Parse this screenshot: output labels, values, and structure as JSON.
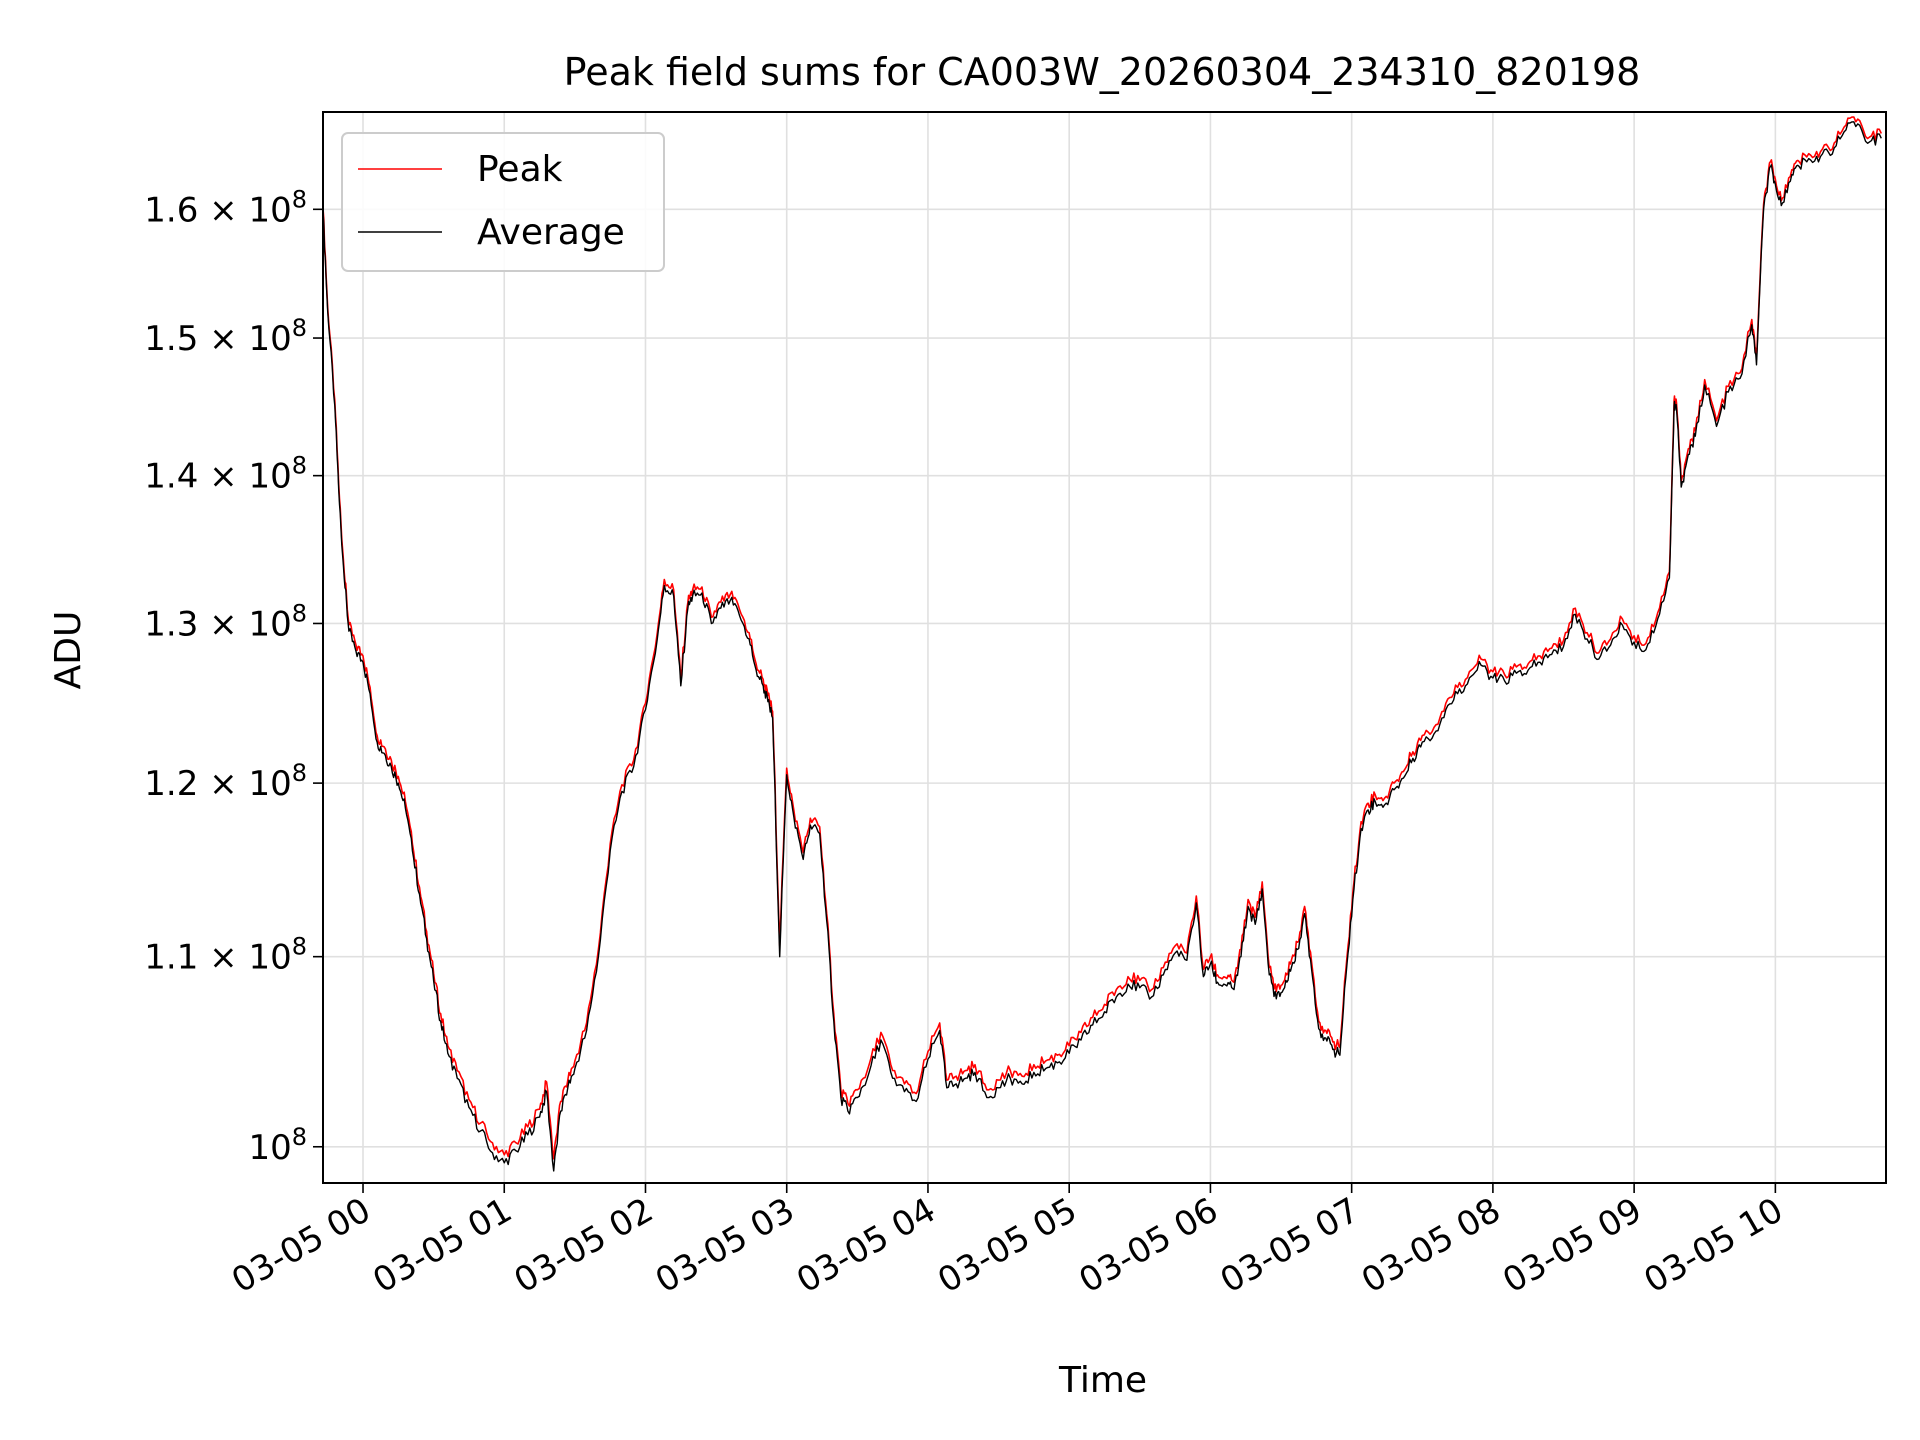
{
  "chart_data": {
    "type": "line",
    "title": "Peak field sums for CA003W_20260304_234310_820198",
    "xlabel": "Time",
    "ylabel": "ADU",
    "yscale": "log",
    "ylim": [
      98200000,
      168000000
    ],
    "xlim": [
      "2026-03-04T23:43",
      "2026-03-05T10:47"
    ],
    "grid": true,
    "legend_position": "top-left",
    "x_tick_labels": [
      "03-05 00",
      "03-05 01",
      "03-05 02",
      "03-05 03",
      "03-05 04",
      "03-05 05",
      "03-05 06",
      "03-05 07",
      "03-05 08",
      "03-05 09",
      "03-05 10"
    ],
    "y_ticks": [
      {
        "value": 100000000,
        "mant": "",
        "exp": "8"
      },
      {
        "value": 110000000,
        "mant": "1.1 × 10",
        "exp": "8"
      },
      {
        "value": 120000000,
        "mant": "1.2 × 10",
        "exp": "8"
      },
      {
        "value": 130000000,
        "mant": "1.3 × 10",
        "exp": "8"
      },
      {
        "value": 140000000,
        "mant": "1.4 × 10",
        "exp": "8"
      },
      {
        "value": 150000000,
        "mant": "1.5 × 10",
        "exp": "8"
      },
      {
        "value": 160000000,
        "mant": "1.6 × 10",
        "exp": "8"
      }
    ],
    "series": [
      {
        "name": "Peak",
        "color": "#ff0000"
      },
      {
        "name": "Average",
        "color": "#000000"
      }
    ],
    "x": [
      "2026-03-04T23:43",
      "2026-03-04T23:45",
      "2026-03-04T23:48",
      "2026-03-04T23:50",
      "2026-03-04T23:52",
      "2026-03-04T23:54",
      "2026-03-04T23:57",
      "2026-03-05T00:00",
      "2026-03-05T00:03",
      "2026-03-05T00:06",
      "2026-03-05T00:09",
      "2026-03-05T00:12",
      "2026-03-05T00:15",
      "2026-03-05T00:18",
      "2026-03-05T00:21",
      "2026-03-05T00:24",
      "2026-03-05T00:27",
      "2026-03-05T00:30",
      "2026-03-05T00:33",
      "2026-03-05T00:36",
      "2026-03-05T00:40",
      "2026-03-05T00:45",
      "2026-03-05T00:50",
      "2026-03-05T00:55",
      "2026-03-05T01:00",
      "2026-03-05T01:05",
      "2026-03-05T01:10",
      "2026-03-05T01:15",
      "2026-03-05T01:18",
      "2026-03-05T01:21",
      "2026-03-05T01:24",
      "2026-03-05T01:27",
      "2026-03-05T01:30",
      "2026-03-05T01:35",
      "2026-03-05T01:40",
      "2026-03-05T01:45",
      "2026-03-05T01:50",
      "2026-03-05T01:55",
      "2026-03-05T02:00",
      "2026-03-05T02:05",
      "2026-03-05T02:08",
      "2026-03-05T02:12",
      "2026-03-05T02:15",
      "2026-03-05T02:18",
      "2026-03-05T02:20",
      "2026-03-05T02:24",
      "2026-03-05T02:28",
      "2026-03-05T02:32",
      "2026-03-05T02:36",
      "2026-03-05T02:40",
      "2026-03-05T02:44",
      "2026-03-05T02:47",
      "2026-03-05T02:50",
      "2026-03-05T02:52",
      "2026-03-05T02:54",
      "2026-03-05T02:57",
      "2026-03-05T03:00",
      "2026-03-05T03:03",
      "2026-03-05T03:07",
      "2026-03-05T03:10",
      "2026-03-05T03:14",
      "2026-03-05T03:17",
      "2026-03-05T03:20",
      "2026-03-05T03:23",
      "2026-03-05T03:26",
      "2026-03-05T03:30",
      "2026-03-05T03:35",
      "2026-03-05T03:40",
      "2026-03-05T03:45",
      "2026-03-05T03:50",
      "2026-03-05T03:55",
      "2026-03-05T04:00",
      "2026-03-05T04:05",
      "2026-03-05T04:08",
      "2026-03-05T04:12",
      "2026-03-05T04:16",
      "2026-03-05T04:20",
      "2026-03-05T04:25",
      "2026-03-05T04:30",
      "2026-03-05T04:35",
      "2026-03-05T04:40",
      "2026-03-05T04:45",
      "2026-03-05T04:50",
      "2026-03-05T04:55",
      "2026-03-05T05:00",
      "2026-03-05T05:05",
      "2026-03-05T05:10",
      "2026-03-05T05:15",
      "2026-03-05T05:20",
      "2026-03-05T05:25",
      "2026-03-05T05:30",
      "2026-03-05T05:35",
      "2026-03-05T05:40",
      "2026-03-05T05:45",
      "2026-03-05T05:50",
      "2026-03-05T05:54",
      "2026-03-05T05:57",
      "2026-03-05T06:00",
      "2026-03-05T06:03",
      "2026-03-05T06:07",
      "2026-03-05T06:10",
      "2026-03-05T06:13",
      "2026-03-05T06:16",
      "2026-03-05T06:19",
      "2026-03-05T06:22",
      "2026-03-05T06:25",
      "2026-03-05T06:28",
      "2026-03-05T06:31",
      "2026-03-05T06:34",
      "2026-03-05T06:37",
      "2026-03-05T06:40",
      "2026-03-05T06:43",
      "2026-03-05T06:46",
      "2026-03-05T06:49",
      "2026-03-05T06:52",
      "2026-03-05T06:55",
      "2026-03-05T06:58",
      "2026-03-05T07:01",
      "2026-03-05T07:04",
      "2026-03-05T07:07",
      "2026-03-05T07:10",
      "2026-03-05T07:14",
      "2026-03-05T07:18",
      "2026-03-05T07:22",
      "2026-03-05T07:26",
      "2026-03-05T07:30",
      "2026-03-05T07:35",
      "2026-03-05T07:40",
      "2026-03-05T07:45",
      "2026-03-05T07:50",
      "2026-03-05T07:55",
      "2026-03-05T08:00",
      "2026-03-05T08:05",
      "2026-03-05T08:10",
      "2026-03-05T08:15",
      "2026-03-05T08:20",
      "2026-03-05T08:25",
      "2026-03-05T08:30",
      "2026-03-05T08:35",
      "2026-03-05T08:40",
      "2026-03-05T08:45",
      "2026-03-05T08:50",
      "2026-03-05T08:55",
      "2026-03-05T09:00",
      "2026-03-05T09:05",
      "2026-03-05T09:10",
      "2026-03-05T09:15",
      "2026-03-05T09:17",
      "2026-03-05T09:18",
      "2026-03-05T09:20",
      "2026-03-05T09:23",
      "2026-03-05T09:26",
      "2026-03-05T09:30",
      "2026-03-05T09:35",
      "2026-03-05T09:40",
      "2026-03-05T09:45",
      "2026-03-05T09:50",
      "2026-03-05T09:52",
      "2026-03-05T09:55",
      "2026-03-05T09:58",
      "2026-03-05T10:00",
      "2026-03-05T10:03",
      "2026-03-05T10:07",
      "2026-03-05T10:10",
      "2026-03-05T10:15",
      "2026-03-05T10:20",
      "2026-03-05T10:25",
      "2026-03-05T10:30",
      "2026-03-05T10:35",
      "2026-03-05T10:40",
      "2026-03-05T10:45",
      "2026-03-05T10:47"
    ],
    "average": [
      159800000,
      152000000,
      145000000,
      138000000,
      133000000,
      129500000,
      128200000,
      127500000,
      125500000,
      122500000,
      121800000,
      121000000,
      120000000,
      118500000,
      116000000,
      113500000,
      111000000,
      108700000,
      106500000,
      104800000,
      103500000,
      102000000,
      100800000,
      99700000,
      99200000,
      99800000,
      100600000,
      101500000,
      102800000,
      98800000,
      101800000,
      103000000,
      104000000,
      106000000,
      110000000,
      116000000,
      119500000,
      121000000,
      124500000,
      129000000,
      132500000,
      131800000,
      126000000,
      131000000,
      131800000,
      132000000,
      130000000,
      131000000,
      131500000,
      130500000,
      129000000,
      127000000,
      126000000,
      125000000,
      124000000,
      110000000,
      120500000,
      118000000,
      115500000,
      117500000,
      117000000,
      112000000,
      106500000,
      102500000,
      101800000,
      102500000,
      103800000,
      105500000,
      103500000,
      102800000,
      102300000,
      104500000,
      106000000,
      103000000,
      103200000,
      103500000,
      103800000,
      102500000,
      103000000,
      103500000,
      103200000,
      103800000,
      104000000,
      104300000,
      104800000,
      105500000,
      106300000,
      107000000,
      107800000,
      108500000,
      108300000,
      107800000,
      109000000,
      110200000,
      109800000,
      113000000,
      108900000,
      109600000,
      108600000,
      108400000,
      108200000,
      110000000,
      112800000,
      111800000,
      113800000,
      109000000,
      107700000,
      108200000,
      109200000,
      110400000,
      112400000,
      109300000,
      106100000,
      105600000,
      105000000,
      104700000,
      109600000,
      113800000,
      117300000,
      118400000,
      118900000,
      118700000,
      119600000,
      120300000,
      121500000,
      122500000,
      123000000,
      124500000,
      125500000,
      126500000,
      127300000,
      126500000,
      126300000,
      126800000,
      127000000,
      127500000,
      128000000,
      128500000,
      130600000,
      129000000,
      127700000,
      128600000,
      129900000,
      128800000,
      128300000,
      130300000,
      133000000,
      145000000,
      144800000,
      139200000,
      141500000,
      142800000,
      146500000,
      143500000,
      146000000,
      147000000,
      151000000,
      148000000,
      160000000,
      163500000,
      162000000,
      160500000,
      162800000,
      163500000,
      164000000,
      164500000,
      165000000,
      166500000,
      167000000,
      165500000,
      165800000
    ],
    "peak": [
      160100000,
      152300000,
      145400000,
      138400000,
      133400000,
      129900000,
      128600000,
      127900000,
      125900000,
      122900000,
      122200000,
      121400000,
      120400000,
      118900000,
      116400000,
      113900000,
      111400000,
      109100000,
      106900000,
      105200000,
      103900000,
      102400000,
      101200000,
      100200000,
      99600000,
      100200000,
      101000000,
      101900000,
      103300000,
      99400000,
      102300000,
      103400000,
      104400000,
      106400000,
      110400000,
      116400000,
      119900000,
      121400000,
      124900000,
      129400000,
      132900000,
      132200000,
      126400000,
      131400000,
      132200000,
      132400000,
      130400000,
      131400000,
      131900000,
      130900000,
      129400000,
      127400000,
      126400000,
      125400000,
      124400000,
      110600000,
      120900000,
      118400000,
      115900000,
      117900000,
      117400000,
      112400000,
      106900000,
      102900000,
      102200000,
      102900000,
      104200000,
      105900000,
      103900000,
      103200000,
      102700000,
      104900000,
      106400000,
      103400000,
      103600000,
      103900000,
      104200000,
      102900000,
      103400000,
      103900000,
      103600000,
      104200000,
      104400000,
      104700000,
      105200000,
      105900000,
      106700000,
      107400000,
      108200000,
      108900000,
      108700000,
      108200000,
      109400000,
      110600000,
      110200000,
      113400000,
      109300000,
      110000000,
      109000000,
      108800000,
      108600000,
      110400000,
      113200000,
      112200000,
      114200000,
      109400000,
      108100000,
      108600000,
      109600000,
      110800000,
      112800000,
      109700000,
      106500000,
      106000000,
      105400000,
      105100000,
      110000000,
      114200000,
      117700000,
      118800000,
      119300000,
      119100000,
      120000000,
      120700000,
      121900000,
      122900000,
      123400000,
      124900000,
      125900000,
      126900000,
      127700000,
      126900000,
      126700000,
      127200000,
      127400000,
      127900000,
      128400000,
      128900000,
      131000000,
      129400000,
      128100000,
      129000000,
      130300000,
      129200000,
      128700000,
      130700000,
      133400000,
      145400000,
      145200000,
      139600000,
      141900000,
      143200000,
      146900000,
      143900000,
      146400000,
      147400000,
      151400000,
      148400000,
      160400000,
      163900000,
      162400000,
      160900000,
      163200000,
      163900000,
      164400000,
      164900000,
      165400000,
      166900000,
      167400000,
      165900000,
      166200000
    ]
  }
}
